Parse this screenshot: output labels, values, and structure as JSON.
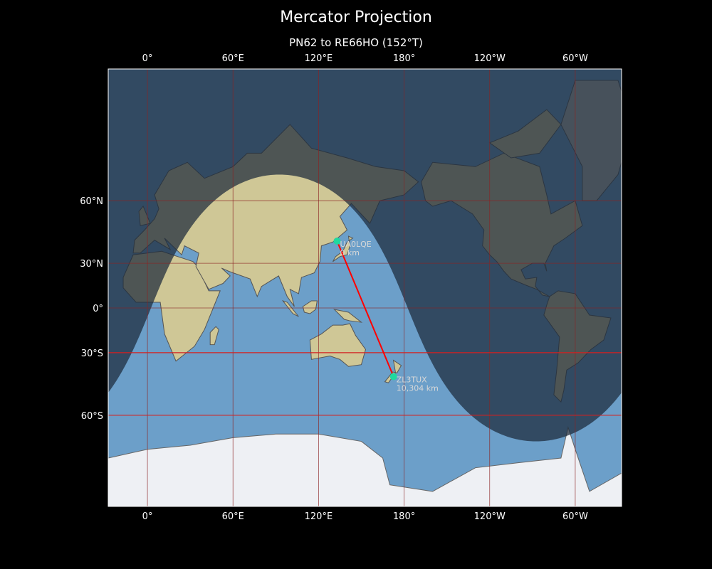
{
  "title": "Mercator Projection",
  "subtitle": "PN62 to RE66HO (152°T)",
  "map": {
    "projection": "mercator",
    "lon_range": [
      -27.5,
      332.5
    ],
    "lat_range": [
      -80,
      84
    ],
    "central_longitude": 152.5,
    "lon_ticks": [
      {
        "value": 0,
        "label": "0°"
      },
      {
        "value": 60,
        "label": "60°E"
      },
      {
        "value": 120,
        "label": "120°E"
      },
      {
        "value": 180,
        "label": "180°"
      },
      {
        "value": 240,
        "label": "120°W"
      },
      {
        "value": 300,
        "label": "60°W"
      }
    ],
    "lat_ticks": [
      {
        "value": 60,
        "label": "60°N"
      },
      {
        "value": 30,
        "label": "30°N"
      },
      {
        "value": 0,
        "label": "0°"
      },
      {
        "value": -30,
        "label": "30°S"
      },
      {
        "value": -60,
        "label": "60°S"
      }
    ],
    "highlight_latitudes": [
      -30,
      -60
    ],
    "subsolar_point": {
      "lat": -22,
      "lon": 92.5
    },
    "colors": {
      "ocean": "#6c9fc9",
      "land": "#cfc796",
      "ice": "#eef0f4",
      "night": "#1c2a3a",
      "grid": "#8b2323",
      "highlight_grid": "#d42020",
      "path": "#ff0000",
      "station": "#1fd8a0"
    }
  },
  "stations": [
    {
      "call": "UA0LQE",
      "grid": "PN62",
      "distance": "0 km",
      "lat": 42.5,
      "lon": 133
    },
    {
      "call": "ZL3TUX",
      "grid": "RE66HO",
      "distance": "10,304 km",
      "lat": -43.4,
      "lon": 172.6
    }
  ]
}
